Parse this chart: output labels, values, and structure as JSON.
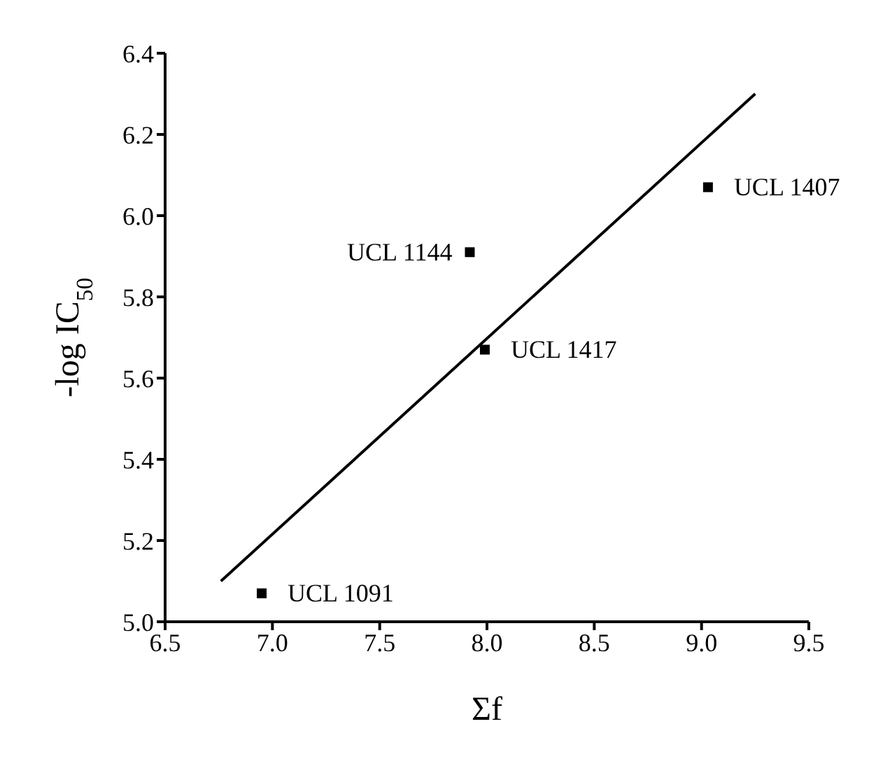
{
  "chart_data": {
    "type": "scatter",
    "xlabel": "Σf",
    "ylabel": "-log IC$_{50}$",
    "xlim": [
      6.5,
      9.5
    ],
    "xticks": [
      6.5,
      {
        "value": 7,
        "label": "7.0"
      },
      7.5,
      {
        "value": 8,
        "label": "8.0"
      },
      8.5,
      {
        "value": 9,
        "label": "9.0"
      },
      9.5
    ],
    "ylim": [
      5.0,
      6.4
    ],
    "yticks": [
      {
        "value": 5,
        "label": "5.0"
      },
      5.2,
      5.4,
      5.6,
      5.8,
      {
        "value": 6,
        "label": "6.0"
      },
      6.2,
      6.4
    ],
    "grid": false,
    "series": [
      {
        "color": "#000000",
        "marker": "square",
        "x": [
          6.95,
          7.92,
          7.99,
          9.03
        ],
        "values": [
          5.07,
          5.91,
          5.67,
          6.07
        ],
        "value_labels": [
          "UCL 1091",
          "UCL 1144",
          "UCL 1417",
          "UCL 1407"
        ]
      },
      {
        "type": "line",
        "marker": "none",
        "color": "#000000",
        "x": [
          6.76,
          9.25
        ],
        "values": [
          5.1,
          6.3
        ]
      }
    ]
  }
}
